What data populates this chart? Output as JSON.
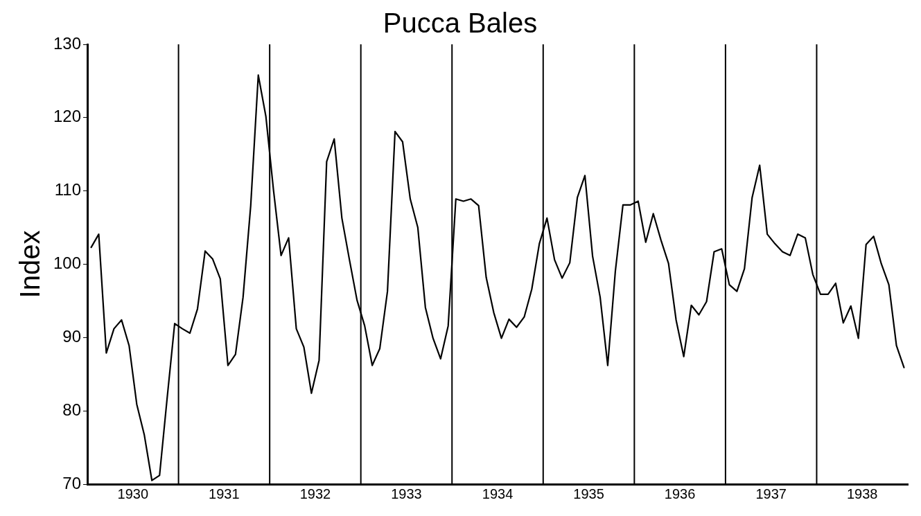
{
  "chart_data": {
    "type": "line",
    "title": "Pucca Bales",
    "ylabel": "Index",
    "x": [
      1930.042,
      1930.125,
      1930.208,
      1930.292,
      1930.375,
      1930.458,
      1930.542,
      1930.625,
      1930.708,
      1930.792,
      1930.875,
      1930.958,
      1931.042,
      1931.125,
      1931.208,
      1931.292,
      1931.375,
      1931.458,
      1931.542,
      1931.625,
      1931.708,
      1931.792,
      1931.875,
      1931.958,
      1932.042,
      1932.125,
      1932.208,
      1932.292,
      1932.375,
      1932.458,
      1932.542,
      1932.625,
      1932.708,
      1932.792,
      1932.875,
      1932.958,
      1933.042,
      1933.125,
      1933.208,
      1933.292,
      1933.375,
      1933.458,
      1933.542,
      1933.625,
      1933.708,
      1933.792,
      1933.875,
      1933.958,
      1934.042,
      1934.125,
      1934.208,
      1934.292,
      1934.375,
      1934.458,
      1934.542,
      1934.625,
      1934.708,
      1934.792,
      1934.875,
      1934.958,
      1935.042,
      1935.125,
      1935.208,
      1935.292,
      1935.375,
      1935.458,
      1935.542,
      1935.625,
      1935.708,
      1935.792,
      1935.875,
      1935.958,
      1936.042,
      1936.125,
      1936.208,
      1936.292,
      1936.375,
      1936.458,
      1936.542,
      1936.625,
      1936.708,
      1936.792,
      1936.875,
      1936.958,
      1937.042,
      1937.125,
      1937.208,
      1937.292,
      1937.375,
      1937.458,
      1937.542,
      1937.625,
      1937.708,
      1937.792,
      1937.875,
      1937.958,
      1938.042,
      1938.125,
      1938.208,
      1938.292,
      1938.375,
      1938.458,
      1938.542,
      1938.625,
      1938.708,
      1938.792,
      1938.875,
      1938.958
    ],
    "series": [
      {
        "color": "#000000",
        "values": [
          102.3,
          104.1,
          87.9,
          91.2,
          92.4,
          88.9,
          80.9,
          76.7,
          70.5,
          71.2,
          81.7,
          91.9,
          91.2,
          90.6,
          93.9,
          101.8,
          100.7,
          98.0,
          86.2,
          87.7,
          95.5,
          108,
          125.8,
          120.2,
          110.1,
          101.2,
          103.6,
          91.2,
          88.7,
          82.4,
          86.9,
          114.0,
          117.1,
          106.3,
          100.6,
          95.1,
          91.6,
          86.2,
          88.5,
          96.3,
          118.1,
          116.7,
          108.9,
          105.0,
          94.1,
          89.9,
          87.1,
          91.6,
          108.9,
          108.6,
          108.9,
          108.0,
          98.2,
          93.4,
          89.9,
          92.5,
          91.4,
          92.8,
          96.6,
          102.8,
          106.3,
          100.6,
          98.1,
          100.2,
          109.1,
          112.1,
          101.1,
          95.5,
          86.2,
          99.1,
          108.1,
          108.1,
          108.6,
          103.0,
          106.9,
          103.3,
          100.1,
          92.4,
          87.4,
          94.4,
          93.1,
          94.9,
          101.7,
          102.1,
          97.2,
          96.3,
          99.4,
          109.1,
          113.5,
          104.1,
          102.8,
          101.7,
          101.2,
          104.1,
          103.6,
          98.6,
          95.9,
          95.9,
          97.4,
          92.0,
          94.3,
          89.9,
          102.7,
          103.8,
          100.1,
          97.2,
          88.9,
          85.9
        ]
      }
    ],
    "xlim": [
      1930,
      1939
    ],
    "xticks": [
      {
        "value": 1930.5,
        "label": "1930"
      },
      {
        "value": 1931.5,
        "label": "1931"
      },
      {
        "value": 1932.5,
        "label": "1932"
      },
      {
        "value": 1933.5,
        "label": "1933"
      },
      {
        "value": 1934.5,
        "label": "1934"
      },
      {
        "value": 1935.5,
        "label": "1935"
      },
      {
        "value": 1936.5,
        "label": "1936"
      },
      {
        "value": 1937.5,
        "label": "1937"
      },
      {
        "value": 1938.5,
        "label": "1938"
      }
    ],
    "ylim": [
      70,
      130
    ],
    "yticks": [
      70,
      80,
      90,
      100,
      110,
      120,
      130
    ],
    "ref_lines": [
      {
        "axis": "x",
        "value": 1931,
        "color": "#000000"
      },
      {
        "axis": "x",
        "value": 1932,
        "color": "#000000"
      },
      {
        "axis": "x",
        "value": 1933,
        "color": "#000000"
      },
      {
        "axis": "x",
        "value": 1934,
        "color": "#000000"
      },
      {
        "axis": "x",
        "value": 1935,
        "color": "#000000"
      },
      {
        "axis": "x",
        "value": 1936,
        "color": "#000000"
      },
      {
        "axis": "x",
        "value": 1937,
        "color": "#000000"
      },
      {
        "axis": "x",
        "value": 1938,
        "color": "#000000"
      }
    ],
    "grid": false,
    "legend": false,
    "marker": "none",
    "line_style": "solid"
  }
}
